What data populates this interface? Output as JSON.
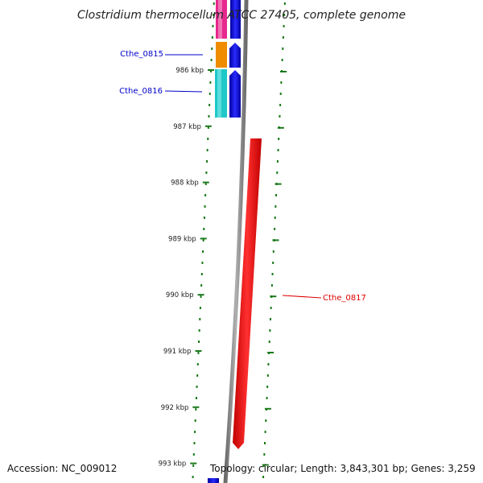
{
  "title": "Clostridium thermocellum ATCC 27405, complete genome",
  "ticks": [
    {
      "kbp": 986,
      "label": "986 kbp"
    },
    {
      "kbp": 987,
      "label": "987 kbp"
    },
    {
      "kbp": 988,
      "label": "988 kbp"
    },
    {
      "kbp": 989,
      "label": "989 kbp"
    },
    {
      "kbp": 990,
      "label": "990 kbp"
    },
    {
      "kbp": 991,
      "label": "991 kbp"
    },
    {
      "kbp": 992,
      "label": "992 kbp"
    },
    {
      "kbp": 993,
      "label": "993 kbp"
    }
  ],
  "genes": {
    "cthe_0815": {
      "label": "Cthe_0815",
      "cog_color": "#f08c00",
      "strand_color": "#0000e6"
    },
    "cthe_0816": {
      "label": "Cthe_0816",
      "cog_color": "#1ec8c8",
      "strand_color": "#0000e6"
    },
    "cthe_0817": {
      "label": "Cthe_0817",
      "strand_color": "#ff0000"
    },
    "top_gene": {
      "cog_color": "#e6288c",
      "strand_color": "#0000e6"
    }
  },
  "colors": {
    "backbone": "#8a8a8a",
    "ticks": "#1a7a1a",
    "forward_strand": "#0000e6",
    "reverse_strand": "#ff0000"
  },
  "footer": {
    "accession": "Accession: NC_009012",
    "topology": "Topology: circular; Length: 3,843,301 bp; Genes: 3,259"
  }
}
